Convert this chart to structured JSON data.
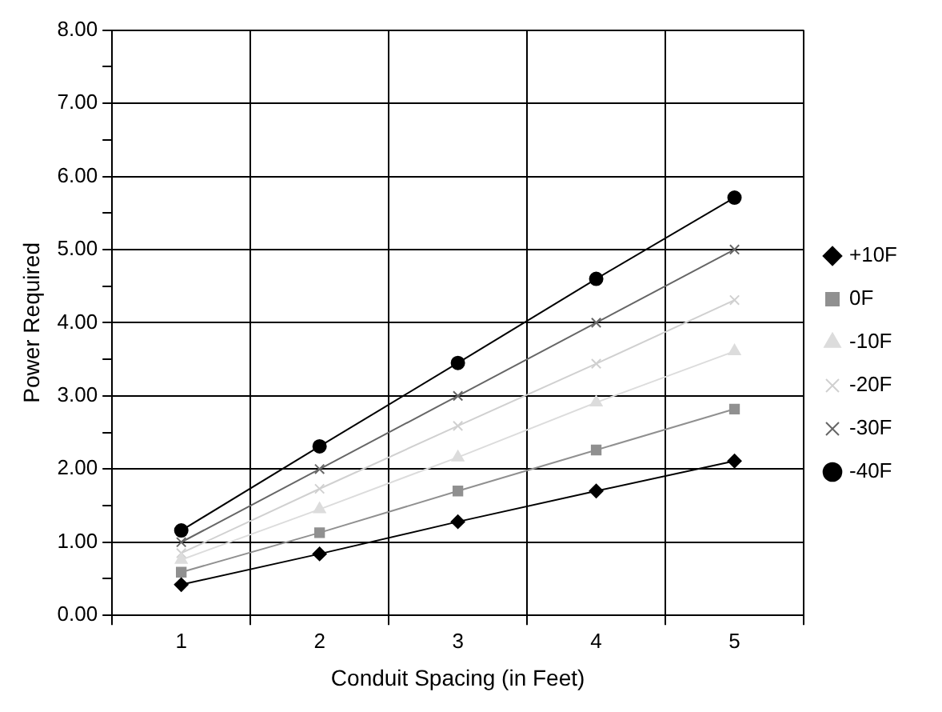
{
  "chart_data": {
    "type": "line",
    "xlabel": "Conduit Spacing (in Feet)",
    "ylabel": "Power Required",
    "categories": [
      "1",
      "2",
      "3",
      "4",
      "5"
    ],
    "series": [
      {
        "name": "+10F",
        "color": "#000000",
        "marker": "diamond",
        "values": [
          0.42,
          0.84,
          1.28,
          1.7,
          2.11
        ]
      },
      {
        "name": "0F",
        "color": "#909090",
        "marker": "square",
        "values": [
          0.59,
          1.13,
          1.7,
          2.26,
          2.82
        ]
      },
      {
        "name": "-10F",
        "color": "#dcdcdc",
        "marker": "triangle",
        "values": [
          0.76,
          1.45,
          2.16,
          2.91,
          3.61
        ]
      },
      {
        "name": "-20F",
        "color": "#d0d0d0",
        "marker": "cross",
        "values": [
          0.85,
          1.73,
          2.59,
          3.44,
          4.31
        ]
      },
      {
        "name": "-30F",
        "color": "#666666",
        "marker": "cross",
        "values": [
          1.0,
          2.0,
          3.0,
          4.0,
          5.0
        ]
      },
      {
        "name": "-40F",
        "color": "#000000",
        "marker": "circle",
        "values": [
          1.16,
          2.31,
          3.45,
          4.6,
          5.71
        ]
      }
    ],
    "ylim": [
      0,
      8
    ],
    "yticks": [
      {
        "value": 0,
        "label": "0.00"
      },
      {
        "value": 0.5,
        "label": null
      },
      {
        "value": 1,
        "label": "1.00"
      },
      {
        "value": 1.5,
        "label": null
      },
      {
        "value": 2,
        "label": "2.00"
      },
      {
        "value": 2.5,
        "label": null
      },
      {
        "value": 3,
        "label": "3.00"
      },
      {
        "value": 3.5,
        "label": null
      },
      {
        "value": 4,
        "label": "4.00"
      },
      {
        "value": 4.5,
        "label": null
      },
      {
        "value": 5,
        "label": "5.00"
      },
      {
        "value": 5.5,
        "label": null
      },
      {
        "value": 6,
        "label": "6.00"
      },
      {
        "value": 6.5,
        "label": null
      },
      {
        "value": 7,
        "label": "7.00"
      },
      {
        "value": 7.5,
        "label": null
      },
      {
        "value": 8,
        "label": "8.00"
      }
    ],
    "grid": true,
    "legend": "right",
    "line_style": "solid"
  }
}
